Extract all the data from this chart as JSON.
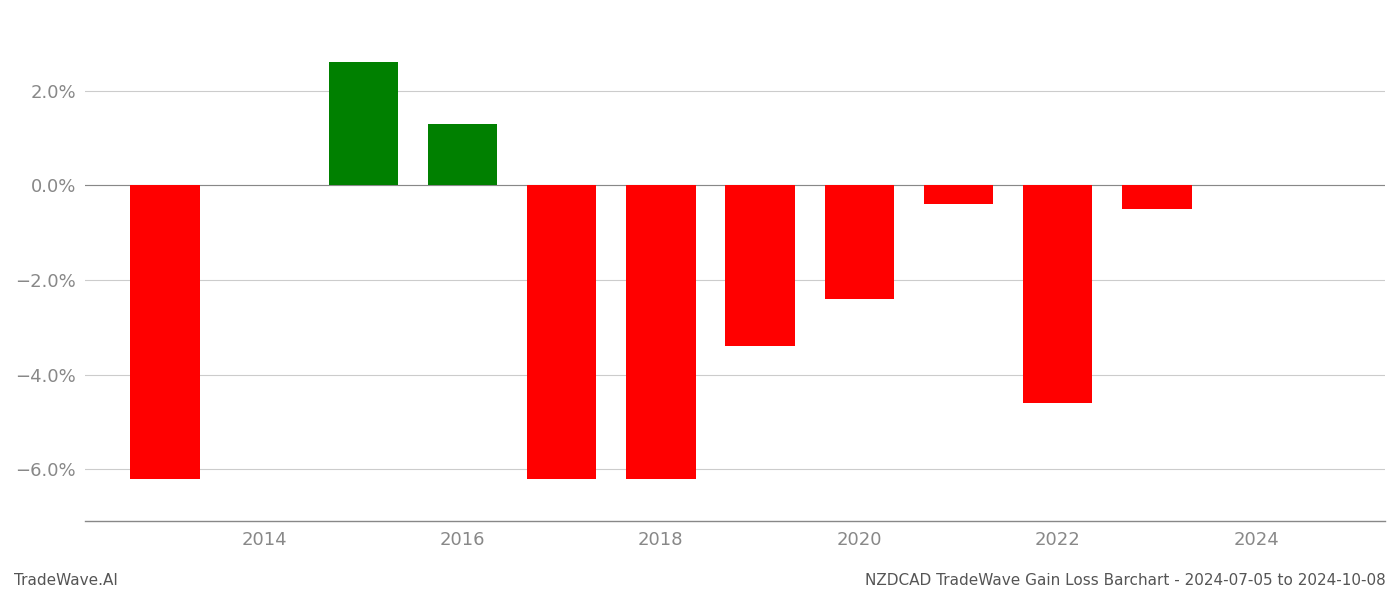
{
  "years": [
    2013,
    2015,
    2016,
    2017,
    2018,
    2019,
    2020,
    2021,
    2022,
    2023
  ],
  "values": [
    -0.062,
    0.026,
    0.013,
    -0.062,
    -0.062,
    -0.034,
    -0.024,
    -0.004,
    -0.046,
    -0.005
  ],
  "colors": [
    "#ff0000",
    "#008000",
    "#008000",
    "#ff0000",
    "#ff0000",
    "#ff0000",
    "#ff0000",
    "#ff0000",
    "#ff0000",
    "#ff0000"
  ],
  "title_left": "TradeWave.AI",
  "title_right": "NZDCAD TradeWave Gain Loss Barchart - 2024-07-05 to 2024-10-08",
  "ylim": [
    -0.071,
    0.036
  ],
  "yticks": [
    -0.06,
    -0.04,
    -0.02,
    0.0,
    0.02
  ],
  "ytick_labels": [
    "−6.0%",
    "−4.0%",
    "−2.0%",
    "0.0%",
    "2.0%"
  ],
  "xlim": [
    2012.2,
    2025.3
  ],
  "xticks": [
    2014,
    2016,
    2018,
    2020,
    2022,
    2024
  ],
  "background_color": "#ffffff",
  "grid_color": "#cccccc",
  "bar_width": 0.7,
  "axis_color": "#888888",
  "title_fontsize": 11,
  "tick_fontsize": 13
}
